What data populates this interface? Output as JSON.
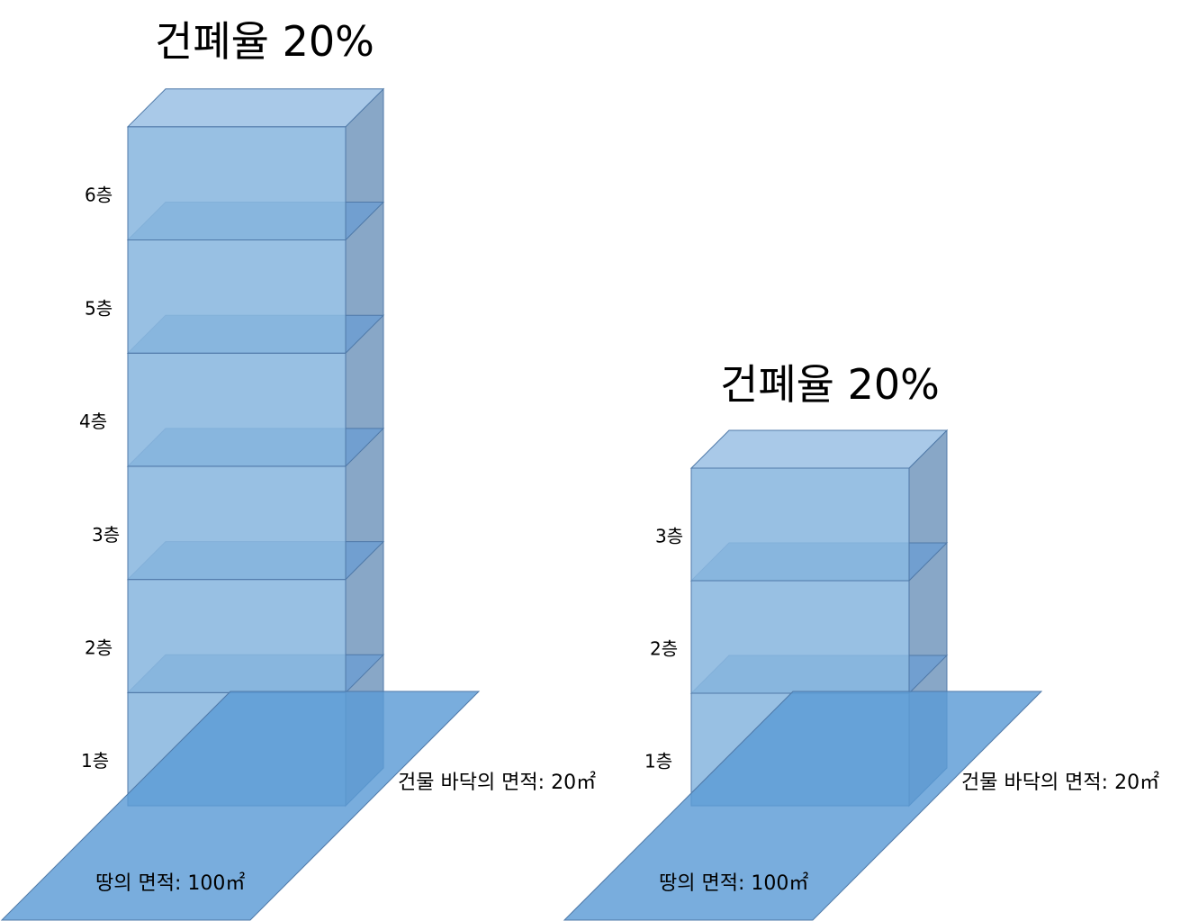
{
  "colors": {
    "land": "#5b9bd5",
    "block_front": "#8ab7df",
    "block_top": "#a9c9e8",
    "block_side": "#7398bd",
    "stroke": "#4f79a8",
    "slab": "#6f9fd0"
  },
  "left_diagram": {
    "title": "건폐율 20%",
    "floors": [
      "1층",
      "2층",
      "3층",
      "4층",
      "5층",
      "6층"
    ],
    "building_floor_area_label": "건물 바닥의 면적: 20㎡",
    "land_area_label": "땅의 면적: 100㎡"
  },
  "right_diagram": {
    "title": "건폐율 20%",
    "floors": [
      "1층",
      "2층",
      "3층"
    ],
    "building_floor_area_label": "건물 바닥의 면적: 20㎡",
    "land_area_label": "땅의 면적: 100㎡"
  }
}
